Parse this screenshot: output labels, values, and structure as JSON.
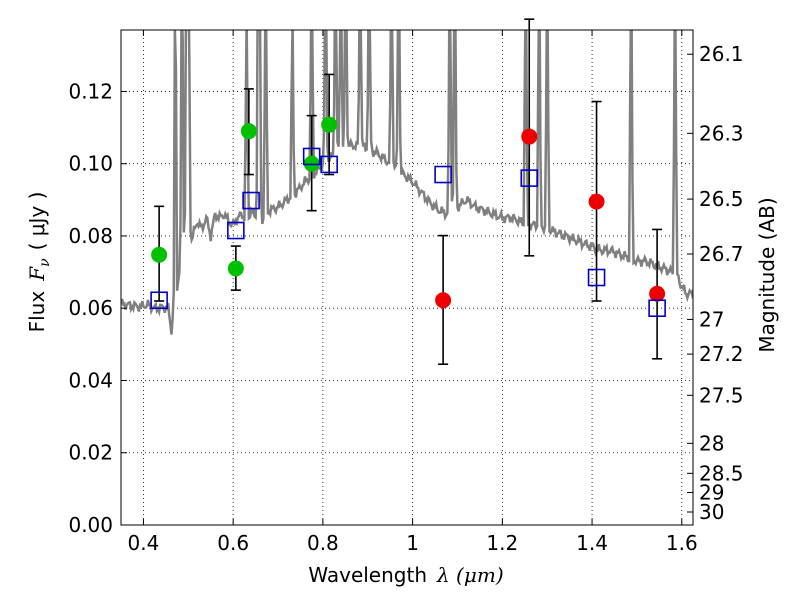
{
  "chart_data": {
    "type": "scatter",
    "xlabel_text": "Wavelength",
    "xlabel_math": "λ (μm)",
    "ylabel_text": "Flux",
    "ylabel_math_main": "F",
    "ylabel_math_sub": "ν",
    "ylabel_unit": "( μJy )",
    "y2label": "Magnitude (AB)",
    "xlim": [
      0.35,
      1.625
    ],
    "ylim": [
      0.0,
      0.137
    ],
    "x_ticks": [
      0.4,
      0.6,
      0.8,
      1.0,
      1.2,
      1.4,
      1.6
    ],
    "x_tick_labels": [
      "0.4",
      "0.6",
      "0.8",
      "1",
      "1.2",
      "1.4",
      "1.6"
    ],
    "y_ticks": [
      0.0,
      0.02,
      0.04,
      0.06,
      0.08,
      0.1,
      0.12
    ],
    "y_tick_labels": [
      "0.00",
      "0.02",
      "0.04",
      "0.06",
      "0.08",
      "0.10",
      "0.12"
    ],
    "y2_ticks": [
      {
        "label": "26.1",
        "flux": 0.1303
      },
      {
        "label": "26.3",
        "flux": 0.1084
      },
      {
        "label": "26.5",
        "flux": 0.0902
      },
      {
        "label": "26.7",
        "flux": 0.075
      },
      {
        "label": "27",
        "flux": 0.0569
      },
      {
        "label": "27.2",
        "flux": 0.0473
      },
      {
        "label": "27.5",
        "flux": 0.0359
      },
      {
        "label": "28",
        "flux": 0.0226
      },
      {
        "label": "28.5",
        "flux": 0.0143
      },
      {
        "label": "29",
        "flux": 0.009
      },
      {
        "label": "30",
        "flux": 0.0036
      }
    ],
    "grid": true,
    "colors": {
      "sed": "#808080",
      "green": "#00c000",
      "red": "#ee0000",
      "model": "#0000cc",
      "errorbar": "#000000"
    },
    "series": [
      {
        "marker": "green-circle",
        "points": [
          {
            "x": 0.435,
            "y": 0.0748,
            "err_lo": 0.062,
            "err_hi": 0.0882
          },
          {
            "x": 0.606,
            "y": 0.071,
            "err_lo": 0.065,
            "err_hi": 0.0772
          },
          {
            "x": 0.635,
            "y": 0.109,
            "err_lo": 0.097,
            "err_hi": 0.1207
          },
          {
            "x": 0.775,
            "y": 0.1,
            "err_lo": 0.087,
            "err_hi": 0.1133
          },
          {
            "x": 0.814,
            "y": 0.1108,
            "err_lo": 0.097,
            "err_hi": 0.1247
          }
        ]
      },
      {
        "marker": "red-circle",
        "points": [
          {
            "x": 1.068,
            "y": 0.0622,
            "err_lo": 0.0445,
            "err_hi": 0.0801
          },
          {
            "x": 1.26,
            "y": 0.1075,
            "err_lo": 0.0745,
            "err_hi": 0.14
          },
          {
            "x": 1.41,
            "y": 0.0895,
            "err_lo": 0.062,
            "err_hi": 0.1172
          },
          {
            "x": 1.545,
            "y": 0.064,
            "err_lo": 0.046,
            "err_hi": 0.0818
          }
        ]
      },
      {
        "marker": "blue-open-square",
        "points": [
          {
            "x": 0.435,
            "y": 0.0622
          },
          {
            "x": 0.606,
            "y": 0.0815
          },
          {
            "x": 0.64,
            "y": 0.0898
          },
          {
            "x": 0.775,
            "y": 0.102
          },
          {
            "x": 0.814,
            "y": 0.0998
          },
          {
            "x": 1.068,
            "y": 0.097
          },
          {
            "x": 1.26,
            "y": 0.096
          },
          {
            "x": 1.41,
            "y": 0.0685
          },
          {
            "x": 1.545,
            "y": 0.06
          }
        ]
      }
    ],
    "sed_curve": [
      [
        0.35,
        0.0612
      ],
      [
        0.37,
        0.0608
      ],
      [
        0.39,
        0.0604
      ],
      [
        0.41,
        0.061
      ],
      [
        0.425,
        0.06
      ],
      [
        0.44,
        0.0602
      ],
      [
        0.455,
        0.06
      ],
      [
        0.46,
        0.056
      ],
      [
        0.463,
        0.053
      ],
      [
        0.466,
        0.06
      ],
      [
        0.468,
        0.064
      ],
      [
        0.47,
        0.137
      ],
      [
        0.472,
        0.137
      ],
      [
        0.475,
        0.066
      ],
      [
        0.48,
        0.07
      ],
      [
        0.49,
        0.073
      ],
      [
        0.5,
        0.076
      ],
      [
        0.51,
        0.08
      ],
      [
        0.52,
        0.084
      ],
      [
        0.53,
        0.082
      ],
      [
        0.54,
        0.085
      ],
      [
        0.55,
        0.08
      ],
      [
        0.56,
        0.086
      ],
      [
        0.57,
        0.085
      ],
      [
        0.58,
        0.086
      ],
      [
        0.59,
        0.084
      ],
      [
        0.6,
        0.083
      ],
      [
        0.61,
        0.085
      ],
      [
        0.62,
        0.086
      ],
      [
        0.63,
        0.084
      ],
      [
        0.64,
        0.087
      ],
      [
        0.66,
        0.084
      ],
      [
        0.68,
        0.087
      ],
      [
        0.7,
        0.088
      ],
      [
        0.72,
        0.09
      ],
      [
        0.74,
        0.092
      ],
      [
        0.76,
        0.095
      ],
      [
        0.78,
        0.097
      ],
      [
        0.8,
        0.1
      ],
      [
        0.82,
        0.102
      ],
      [
        0.84,
        0.104
      ],
      [
        0.86,
        0.105
      ],
      [
        0.88,
        0.105
      ],
      [
        0.9,
        0.104
      ],
      [
        0.92,
        0.103
      ],
      [
        0.94,
        0.101
      ],
      [
        0.96,
        0.099
      ],
      [
        0.98,
        0.097
      ],
      [
        1.0,
        0.095
      ],
      [
        1.02,
        0.092
      ],
      [
        1.04,
        0.089
      ],
      [
        1.06,
        0.087
      ],
      [
        1.08,
        0.086
      ],
      [
        1.1,
        0.088
      ],
      [
        1.12,
        0.09
      ],
      [
        1.14,
        0.088
      ],
      [
        1.16,
        0.087
      ],
      [
        1.18,
        0.086
      ],
      [
        1.2,
        0.085
      ],
      [
        1.22,
        0.085
      ],
      [
        1.24,
        0.084
      ],
      [
        1.26,
        0.083
      ],
      [
        1.28,
        0.083
      ],
      [
        1.3,
        0.082
      ],
      [
        1.32,
        0.081
      ],
      [
        1.34,
        0.08
      ],
      [
        1.36,
        0.079
      ],
      [
        1.38,
        0.078
      ],
      [
        1.4,
        0.077
      ],
      [
        1.42,
        0.076
      ],
      [
        1.44,
        0.076
      ],
      [
        1.46,
        0.075
      ],
      [
        1.48,
        0.074
      ],
      [
        1.5,
        0.073
      ],
      [
        1.52,
        0.073
      ],
      [
        1.54,
        0.072
      ],
      [
        1.56,
        0.071
      ],
      [
        1.58,
        0.07
      ],
      [
        1.59,
        0.069
      ],
      [
        1.6,
        0.066
      ],
      [
        1.61,
        0.064
      ],
      [
        1.625,
        0.064
      ]
    ],
    "emission_lines": [
      {
        "x": 0.4861,
        "peak": 0.137
      },
      {
        "x": 0.4959,
        "peak": 0.137
      },
      {
        "x": 0.5007,
        "peak": 0.137
      },
      {
        "x": 0.63,
        "peak": 0.12
      },
      {
        "x": 0.6563,
        "peak": 0.137
      },
      {
        "x": 0.6583,
        "peak": 0.137
      },
      {
        "x": 0.6725,
        "peak": 0.137
      },
      {
        "x": 0.732,
        "peak": 0.12
      },
      {
        "x": 0.775,
        "peak": 0.137
      },
      {
        "x": 0.806,
        "peak": 0.137
      },
      {
        "x": 0.828,
        "peak": 0.137
      },
      {
        "x": 0.84,
        "peak": 0.137
      },
      {
        "x": 0.851,
        "peak": 0.137
      },
      {
        "x": 0.883,
        "peak": 0.137
      },
      {
        "x": 0.903,
        "peak": 0.137
      },
      {
        "x": 0.953,
        "peak": 0.137
      },
      {
        "x": 0.969,
        "peak": 0.137
      },
      {
        "x": 1.083,
        "peak": 0.137
      },
      {
        "x": 1.094,
        "peak": 0.137
      },
      {
        "x": 1.252,
        "peak": 0.137
      },
      {
        "x": 1.282,
        "peak": 0.137
      },
      {
        "x": 1.3,
        "peak": 0.137
      },
      {
        "x": 1.487,
        "peak": 0.137
      },
      {
        "x": 1.585,
        "peak": 0.137
      }
    ]
  }
}
